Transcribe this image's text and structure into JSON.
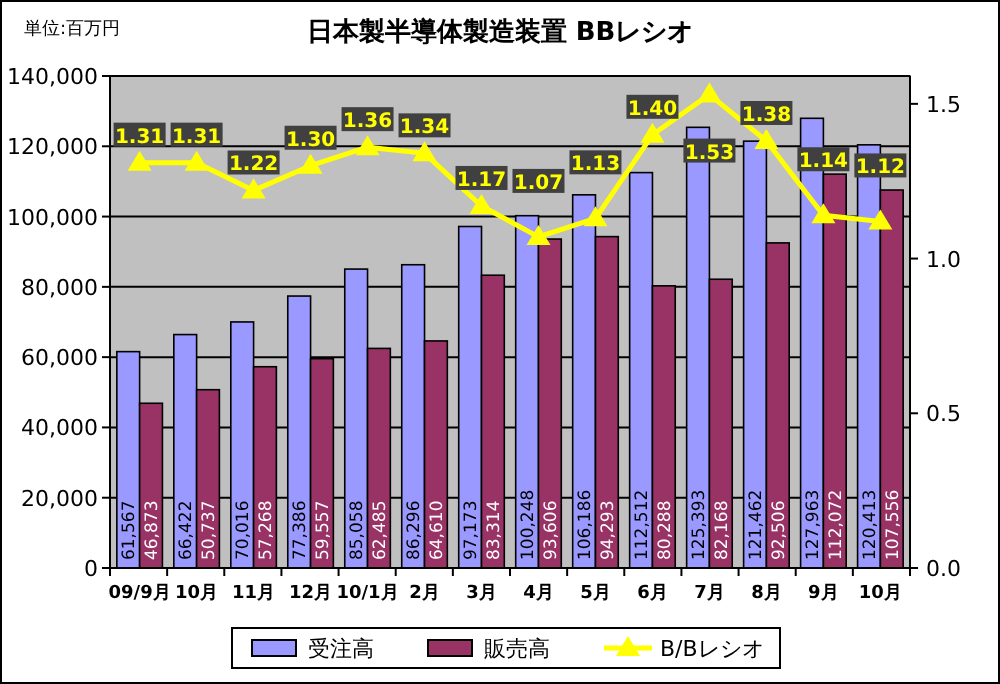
{
  "chart_data": {
    "type": "bar",
    "title": "日本製半導体製造装置 BBレシオ",
    "annotations": [
      "単位:百万円"
    ],
    "categories": [
      "09/9月",
      "10月",
      "11月",
      "12月",
      "10/1月",
      "2月",
      "3月",
      "4月",
      "5月",
      "6月",
      "7月",
      "8月",
      "9月",
      "10月"
    ],
    "series": [
      {
        "name": "受注高",
        "color": "#9999ff",
        "values": [
          61567,
          66422,
          70016,
          77386,
          85058,
          86296,
          97173,
          100248,
          106186,
          112512,
          125393,
          121462,
          127963,
          120413
        ],
        "value_labels": [
          "61,567",
          "66,422",
          "70,016",
          "77,386",
          "85,058",
          "86,296",
          "97,173",
          "100,248",
          "106,186",
          "112,512",
          "125,393",
          "121,462",
          "127,963",
          "120,413"
        ]
      },
      {
        "name": "販売高",
        "color": "#993366",
        "values": [
          46873,
          50737,
          57268,
          59557,
          62485,
          64610,
          83314,
          93606,
          94293,
          80288,
          82168,
          92506,
          112072,
          107556
        ],
        "value_labels": [
          "46,873",
          "50,737",
          "57,268",
          "59,557",
          "62,485",
          "64,610",
          "83,314",
          "93,606",
          "94,293",
          "80,288",
          "82,168",
          "92,506",
          "112,072",
          "107,556"
        ]
      },
      {
        "name": "B/Bレシオ",
        "color": "#ffff00",
        "type": "line",
        "axis": "y2",
        "marker": "triangle",
        "values": [
          1.31,
          1.31,
          1.22,
          1.3,
          1.36,
          1.34,
          1.17,
          1.07,
          1.13,
          1.4,
          1.53,
          1.38,
          1.14,
          1.12
        ],
        "value_labels": [
          "1.31",
          "1.31",
          "1.22",
          "1.30",
          "1.36",
          "1.34",
          "1.17",
          "1.07",
          "1.13",
          "1.40",
          "1.53",
          "1.38",
          "1.14",
          "1.12"
        ]
      }
    ],
    "ylim": [
      0,
      140000
    ],
    "yticks": [
      {
        "value": 0,
        "label": "0"
      },
      {
        "value": 20000,
        "label": "20,000"
      },
      {
        "value": 40000,
        "label": "40,000"
      },
      {
        "value": 60000,
        "label": "60,000"
      },
      {
        "value": 80000,
        "label": "80,000"
      },
      {
        "value": 100000,
        "label": "100,000"
      },
      {
        "value": 120000,
        "label": "120,000"
      },
      {
        "value": 140000,
        "label": "140,000"
      }
    ],
    "y2lim": [
      0,
      1.59
    ],
    "y2ticks": [
      {
        "value": 0,
        "label": "0.0"
      },
      {
        "value": 0.5,
        "label": "0.5"
      },
      {
        "value": 1,
        "label": "1.0"
      },
      {
        "value": 1.5,
        "label": "1.5"
      }
    ],
    "grid": "y",
    "legend": "bottom"
  }
}
